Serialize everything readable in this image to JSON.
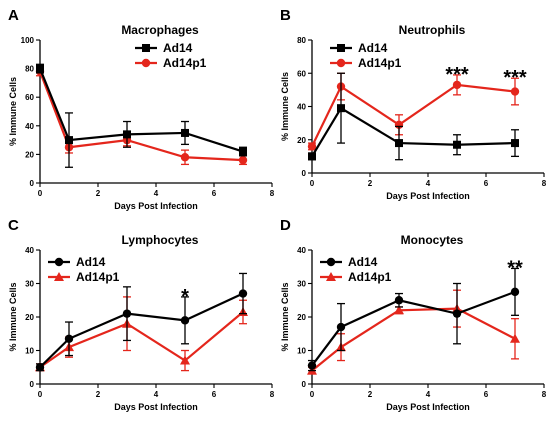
{
  "chart_data": [
    {
      "type": "line",
      "panel_label": "A",
      "title": "Macrophages",
      "xlabel": "Days Post Infection",
      "ylabel": "% Immune Cells",
      "xlim": [
        0,
        8
      ],
      "ylim": [
        0,
        100
      ],
      "xticks": [
        0,
        2,
        4,
        6,
        8
      ],
      "yticks": [
        0,
        20,
        40,
        60,
        80,
        100
      ],
      "legend_position": "top-right",
      "x": [
        0,
        1,
        3,
        5,
        7
      ],
      "series": [
        {
          "name": "Ad14",
          "color": "#000000",
          "marker": "square",
          "values": [
            80,
            30,
            34,
            35,
            22
          ],
          "errors": [
            3,
            19,
            9,
            8,
            3
          ]
        },
        {
          "name": "Ad14p1",
          "color": "#e4261c",
          "marker": "circle",
          "values": [
            78,
            25,
            30,
            18,
            16
          ],
          "errors": [
            3,
            4,
            4,
            5,
            3
          ]
        }
      ],
      "annotations": []
    },
    {
      "type": "line",
      "panel_label": "B",
      "title": "Neutrophils",
      "xlabel": "Days Post Infection",
      "ylabel": "% Immune Cells",
      "xlim": [
        0,
        8
      ],
      "ylim": [
        0,
        80
      ],
      "xticks": [
        0,
        2,
        4,
        6,
        8
      ],
      "yticks": [
        0,
        20,
        40,
        60,
        80
      ],
      "legend_position": "top-center",
      "x": [
        0,
        1,
        3,
        5,
        7
      ],
      "series": [
        {
          "name": "Ad14",
          "color": "#000000",
          "marker": "square",
          "values": [
            10,
            39,
            18,
            17,
            18
          ],
          "errors": [
            2,
            21,
            10,
            6,
            8
          ]
        },
        {
          "name": "Ad14p1",
          "color": "#e4261c",
          "marker": "circle",
          "values": [
            16,
            52,
            29,
            53,
            49
          ],
          "errors": [
            2,
            8,
            6,
            6,
            8
          ]
        }
      ],
      "annotations": [
        {
          "x": 5,
          "text": "***"
        },
        {
          "x": 7,
          "text": "***"
        }
      ]
    },
    {
      "type": "line",
      "panel_label": "C",
      "title": "Lymphocytes",
      "xlabel": "Days Post Infection",
      "ylabel": "% Immune Cells",
      "xlim": [
        0,
        8
      ],
      "ylim": [
        0,
        40
      ],
      "xticks": [
        0,
        2,
        4,
        6,
        8
      ],
      "yticks": [
        0,
        10,
        20,
        30,
        40
      ],
      "legend_position": "top-left",
      "x": [
        0,
        1,
        3,
        5,
        7
      ],
      "series": [
        {
          "name": "Ad14",
          "color": "#000000",
          "marker": "circle",
          "values": [
            5,
            13.5,
            21,
            19,
            27
          ],
          "errors": [
            1,
            5,
            8,
            7,
            6
          ]
        },
        {
          "name": "Ad14p1",
          "color": "#e4261c",
          "marker": "triangle",
          "values": [
            5,
            11,
            18,
            7,
            21.5
          ],
          "errors": [
            1,
            3,
            8,
            3,
            3.5
          ]
        }
      ],
      "annotations": [
        {
          "x": 5,
          "text": "*"
        }
      ]
    },
    {
      "type": "line",
      "panel_label": "D",
      "title": "Monocytes",
      "xlabel": "Days Post Infection",
      "ylabel": "% Immune Cells",
      "xlim": [
        0,
        8
      ],
      "ylim": [
        0,
        40
      ],
      "xticks": [
        0,
        2,
        4,
        6,
        8
      ],
      "yticks": [
        0,
        10,
        20,
        30,
        40
      ],
      "legend_position": "top-left",
      "x": [
        0,
        1,
        3,
        5,
        7
      ],
      "series": [
        {
          "name": "Ad14",
          "color": "#000000",
          "marker": "circle",
          "values": [
            5.5,
            17,
            25,
            21,
            27.5
          ],
          "errors": [
            1.5,
            7,
            2,
            9,
            7
          ]
        },
        {
          "name": "Ad14p1",
          "color": "#e4261c",
          "marker": "triangle",
          "values": [
            4,
            11,
            22,
            22.5,
            13.5
          ],
          "errors": [
            1,
            4,
            1,
            5.5,
            6
          ]
        }
      ],
      "annotations": [
        {
          "x": 7,
          "text": "**"
        }
      ]
    }
  ]
}
